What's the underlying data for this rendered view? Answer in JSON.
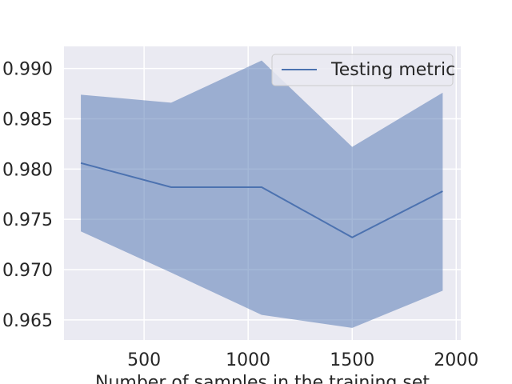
{
  "chart_data": {
    "type": "line",
    "xlabel": "Number of samples in the training set",
    "ylabel": "",
    "xlim": [
      115,
      2022
    ],
    "ylim": [
      0.963,
      0.9922
    ],
    "xticks": [
      500,
      1000,
      1500,
      2000
    ],
    "yticks": [
      0.965,
      0.97,
      0.975,
      0.98,
      0.985,
      0.99
    ],
    "ytick_labels": [
      "0.965",
      "0.970",
      "0.975",
      "0.980",
      "0.985",
      "0.990"
    ],
    "xtick_labels": [
      "500",
      "1000",
      "1500",
      "2000"
    ],
    "grid": true,
    "legend_position": "top-right",
    "series": [
      {
        "name": "Testing metric",
        "x": [
          196,
          630,
          1065,
          1500,
          1935
        ],
        "y": [
          0.9806,
          0.9782,
          0.9782,
          0.9732,
          0.9778
        ],
        "lower": [
          0.9738,
          0.9697,
          0.9655,
          0.9642,
          0.9679
        ],
        "upper": [
          0.9874,
          0.9866,
          0.9908,
          0.9822,
          0.9876
        ],
        "color": "#4c72b0"
      }
    ],
    "colors": {
      "plot_background": "#eaeaf2",
      "grid": "#ffffff",
      "band_fill": "#4c72b0",
      "band_opacity": 0.5,
      "line": "#4c72b0"
    }
  }
}
